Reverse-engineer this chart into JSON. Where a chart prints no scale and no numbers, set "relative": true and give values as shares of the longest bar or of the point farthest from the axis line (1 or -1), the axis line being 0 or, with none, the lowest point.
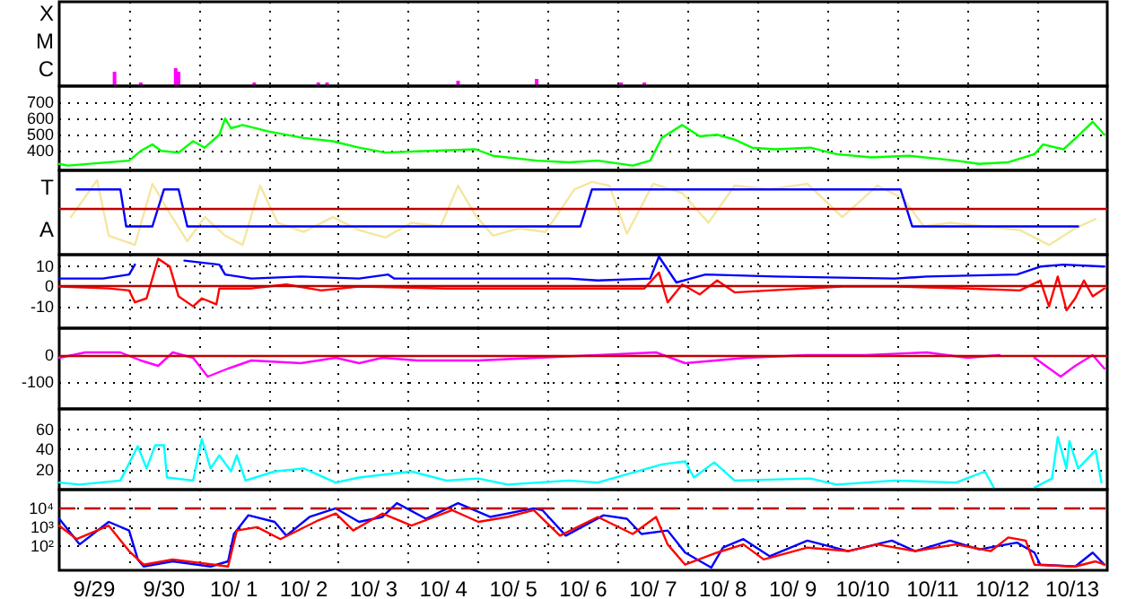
{
  "chart_data": [
    {
      "type": "bar",
      "relative": true,
      "grid": "x",
      "tick_labels": false,
      "xlim": [
        "--09-29",
        "--10-14"
      ],
      "xticks": [
        {
          "value": "--09-30",
          "label": null
        },
        {
          "value": "--10-01",
          "label": null
        },
        {
          "value": "--10-02",
          "label": null
        },
        {
          "value": "--10-03",
          "label": null
        },
        {
          "value": "--10-04",
          "label": null
        },
        {
          "value": "--10-05",
          "label": null
        },
        {
          "value": "--10-06",
          "label": null
        },
        {
          "value": "--10-07",
          "label": null
        },
        {
          "value": "--10-08",
          "label": null
        },
        {
          "value": "--10-09",
          "label": null
        },
        {
          "value": "--10-10",
          "label": null
        },
        {
          "value": "--10-11",
          "label": null
        },
        {
          "value": "--10-12",
          "label": null
        },
        {
          "value": "--10-13",
          "label": null
        }
      ],
      "annotations": [
        "X",
        "M",
        "C"
      ],
      "series": [
        {
          "color": "#ff00ff",
          "x": [
            "--09-29T19:00",
            "--09-30T04:00",
            "--09-30T16:00",
            "--09-30T17:00",
            "--10-01T19:00",
            "--10-02T17:00",
            "--10-02T20:00",
            "--10-04T17:00",
            "--10-05T20:00",
            "--10-07T01:00",
            "--10-07T09:00"
          ],
          "values": [
            0.8,
            0.2,
            1,
            0.8,
            0.2,
            0.2,
            0.2,
            0.3,
            0.4,
            0.2,
            0.2
          ]
        }
      ]
    },
    {
      "type": "line",
      "grid": true,
      "tick_labels": "y",
      "xlim": [
        "--09-29",
        "--10-14"
      ],
      "ylim": [
        280,
        800
      ],
      "xticks": [
        {
          "value": "--09-30",
          "label": null
        },
        {
          "value": "--10-01",
          "label": null
        },
        {
          "value": "--10-02",
          "label": null
        },
        {
          "value": "--10-03",
          "label": null
        },
        {
          "value": "--10-04",
          "label": null
        },
        {
          "value": "--10-05",
          "label": null
        },
        {
          "value": "--10-06",
          "label": null
        },
        {
          "value": "--10-07",
          "label": null
        },
        {
          "value": "--10-08",
          "label": null
        },
        {
          "value": "--10-09",
          "label": null
        },
        {
          "value": "--10-10",
          "label": null
        },
        {
          "value": "--10-11",
          "label": null
        },
        {
          "value": "--10-12",
          "label": null
        },
        {
          "value": "--10-13",
          "label": null
        }
      ],
      "yticks": [
        400,
        500,
        600,
        700
      ],
      "series": [
        {
          "color": "#00ff00",
          "x": [
            "--09-29T00:00",
            "--09-29T03:00",
            "--09-30T00:00",
            "--09-30T04:00",
            "--09-30T08:00",
            "--09-30T11:00",
            "--09-30T17:00",
            "--09-30T22:00",
            "--10-01T02:00",
            "--10-01T07:00",
            "--10-01T09:00",
            "--10-01T11:00",
            "--10-01T15:00",
            "--10-02T00:00",
            "--10-02T12:00",
            "--10-02T22:00",
            "--10-03T07:00",
            "--10-03T16:00",
            "--10-04T07:00",
            "--10-04T23:00",
            "--10-05T05:00",
            "--10-05T20:00",
            "--10-06T07:00",
            "--10-06T17:00",
            "--10-07T05:00",
            "--10-07T11:00",
            "--10-07T15:00",
            "--10-07T22:00",
            "--10-08T04:00",
            "--10-08T10:00",
            "--10-08T16:00",
            "--10-08T22:00",
            "--10-09T06:00",
            "--10-09T18:00",
            "--10-10T03:00",
            "--10-10T15:00",
            "--10-11T04:00",
            "--10-11T20:00",
            "--10-12T04:00",
            "--10-12T14:00",
            "--10-12T23:00",
            "--10-13T02:00",
            "--10-13T09:00",
            "--10-13T15:00",
            "--10-13T19:00",
            "--10-13T23:00"
          ],
          "values": [
            320,
            310,
            340,
            400,
            440,
            400,
            390,
            460,
            420,
            500,
            600,
            540,
            560,
            520,
            480,
            460,
            420,
            390,
            400,
            410,
            370,
            340,
            330,
            340,
            310,
            340,
            480,
            560,
            490,
            500,
            470,
            420,
            410,
            420,
            380,
            360,
            370,
            340,
            320,
            330,
            380,
            440,
            410,
            510,
            580,
            500
          ]
        }
      ]
    },
    {
      "type": "line",
      "relative": true,
      "grid": "x",
      "tick_labels": false,
      "xlim": [
        "--09-29",
        "--10-14"
      ],
      "xticks": [
        {
          "value": "--09-30",
          "label": null
        },
        {
          "value": "--10-01",
          "label": null
        },
        {
          "value": "--10-02",
          "label": null
        },
        {
          "value": "--10-03",
          "label": null
        },
        {
          "value": "--10-04",
          "label": null
        },
        {
          "value": "--10-05",
          "label": null
        },
        {
          "value": "--10-06",
          "label": null
        },
        {
          "value": "--10-07",
          "label": null
        },
        {
          "value": "--10-08",
          "label": null
        },
        {
          "value": "--10-09",
          "label": null
        },
        {
          "value": "--10-10",
          "label": null
        },
        {
          "value": "--10-11",
          "label": null
        },
        {
          "value": "--10-12",
          "label": null
        },
        {
          "value": "--10-13",
          "label": null
        }
      ],
      "annotations": [
        "T",
        "A"
      ],
      "ref_lines": [
        {
          "axis": "y",
          "value": 0,
          "color": "#c00000"
        }
      ],
      "series": [
        {
          "color": "#f5e6a0",
          "x": [
            "--09-29T04:00",
            "--09-29T13:00",
            "--09-29T17:00",
            "--09-30T02:00",
            "--09-30T08:00",
            "--09-30T14:00",
            "--09-30T20:00",
            "--10-01T02:00",
            "--10-01T09:00",
            "--10-01T15:00",
            "--10-01T21:00",
            "--10-02T03:00",
            "--10-02T12:00",
            "--10-02T22:00",
            "--10-03T07:00",
            "--10-03T16:00",
            "--10-04T01:00",
            "--10-04T11:00",
            "--10-04T17:00",
            "--10-04T23:00",
            "--10-05T05:00",
            "--10-05T14:00",
            "--10-05T23:00",
            "--10-06T09:00",
            "--10-06T15:00",
            "--10-06T21:00",
            "--10-07T03:00",
            "--10-07T12:00",
            "--10-07T22:00",
            "--10-08T07:00",
            "--10-08T16:00",
            "--10-09T04:00",
            "--10-09T17:00",
            "--10-10T05:00",
            "--10-10T17:00",
            "--10-11T02:00",
            "--10-11T09:00",
            "--10-11T18:00",
            "--10-12T06:00",
            "--10-12T18:00",
            "--10-13T04:00",
            "--10-13T13:00",
            "--10-13T20:00"
          ],
          "values": [
            -0.25,
            0.75,
            -0.75,
            -1,
            0.65,
            -0.15,
            -0.9,
            -0.25,
            -0.75,
            -1,
            0.6,
            -0.4,
            -0.65,
            -0.25,
            -0.6,
            -0.8,
            -0.4,
            -0.5,
            0.6,
            -0.2,
            -0.75,
            -0.55,
            -0.65,
            0.5,
            0.7,
            0.6,
            -0.7,
            0.65,
            0.4,
            -0.4,
            0.6,
            0.5,
            0.65,
            -0.25,
            0.6,
            0.25,
            -0.5,
            -0.4,
            -0.5,
            -0.6,
            -1,
            -0.55,
            -0.3
          ]
        },
        {
          "color": "#0000ff",
          "x": [
            "--09-29T06:00",
            "--09-29T21:00",
            "--09-29T23:00",
            "--09-30T08:00",
            "--09-30T12:00",
            "--09-30T17:00",
            "--09-30T20:00",
            "--10-06T11:00",
            "--10-06T15:00",
            "--10-11T01:00",
            "--10-11T05:00",
            "--10-13T14:00"
          ],
          "values": [
            0.5,
            0.5,
            -0.5,
            -0.5,
            0.5,
            0.5,
            -0.5,
            -0.5,
            0.5,
            0.5,
            -0.5,
            -0.5
          ]
        }
      ]
    },
    {
      "type": "line",
      "grid": true,
      "tick_labels": "y",
      "xlim": [
        "--09-29",
        "--10-14"
      ],
      "ylim": [
        -21,
        16
      ],
      "xticks": [
        {
          "value": "--09-30",
          "label": null
        },
        {
          "value": "--10-01",
          "label": null
        },
        {
          "value": "--10-02",
          "label": null
        },
        {
          "value": "--10-03",
          "label": null
        },
        {
          "value": "--10-04",
          "label": null
        },
        {
          "value": "--10-05",
          "label": null
        },
        {
          "value": "--10-06",
          "label": null
        },
        {
          "value": "--10-07",
          "label": null
        },
        {
          "value": "--10-08",
          "label": null
        },
        {
          "value": "--10-09",
          "label": null
        },
        {
          "value": "--10-10",
          "label": null
        },
        {
          "value": "--10-11",
          "label": null
        },
        {
          "value": "--10-12",
          "label": null
        },
        {
          "value": "--10-13",
          "label": null
        }
      ],
      "yticks": [
        -10,
        0,
        10
      ],
      "ref_lines": [
        {
          "axis": "y",
          "value": 0,
          "color": "#c00000"
        }
      ],
      "series": [
        {
          "color": "#0000ff",
          "x": [
            "--09-29T00:00",
            "--09-29T15:00",
            "--09-30T00:00",
            "--09-30T02:00",
            "--09-30T03:00",
            "--09-30T09:00",
            "--09-30T15:00",
            "--09-30T19:00",
            "--10-01T01:00",
            "--10-01T07:00",
            "--10-01T09:00",
            "--10-01T18:00",
            "--10-02T11:00",
            "--10-03T07:00",
            "--10-03T17:00",
            "--10-03T19:00",
            "--10-05T00:00",
            "--10-06T07:00",
            "--10-06T17:00",
            "--10-07T11:00",
            "--10-07T14:00",
            "--10-07T20:00",
            "--10-08T06:00",
            "--10-09T06:00",
            "--10-10T23:00",
            "--10-11T10:00",
            "--10-12T17:00",
            "--10-13T01:00",
            "--10-13T09:00",
            "--10-13T23:00"
          ],
          "values": [
            4,
            4,
            6,
            11,
            null,
            null,
            null,
            13,
            12,
            11,
            6,
            4,
            5,
            4,
            6,
            4,
            4,
            4,
            3,
            4,
            15,
            2,
            6,
            5,
            4,
            5,
            6,
            10,
            11,
            10
          ]
        },
        {
          "color": "#ff0000",
          "x": [
            "--09-29T00:00",
            "--09-29T17:00",
            "--09-30T00:00",
            "--09-30T02:00",
            "--09-30T06:00",
            "--09-30T10:00",
            "--09-30T14:00",
            "--09-30T17:00",
            "--09-30T22:00",
            "--10-01T01:00",
            "--10-01T06:00",
            "--10-01T07:00",
            "--10-01T18:00",
            "--10-02T06:00",
            "--10-02T18:00",
            "--10-03T07:00",
            "--10-04T13:00",
            "--10-05T20:00",
            "--10-06T07:00",
            "--10-07T09:00",
            "--10-07T14:00",
            "--10-07T17:00",
            "--10-07T22:00",
            "--10-08T04:00",
            "--10-08T10:00",
            "--10-08T16:00",
            "--10-09T04:00",
            "--10-10T05:00",
            "--10-10T23:00",
            "--10-12T00:00",
            "--10-12T18:00",
            "--10-13T01:00",
            "--10-13T04:00",
            "--10-13T07:00",
            "--10-13T10:00",
            "--10-13T13:00",
            "--10-13T16:00",
            "--10-13T19:00",
            "--10-13T23:00"
          ],
          "values": [
            0,
            -1,
            -2,
            -8,
            -6,
            14,
            10,
            -5,
            -10,
            -6,
            -9,
            -1,
            -1,
            1,
            -2,
            0,
            -1,
            -1,
            -1,
            -1,
            7,
            -8,
            1,
            -4,
            3,
            -3,
            -2,
            0,
            0,
            -1,
            -2,
            3,
            -10,
            5,
            -12,
            -6,
            3,
            -5,
            -1
          ]
        }
      ]
    },
    {
      "type": "line",
      "grid": true,
      "tick_labels": "y",
      "xlim": [
        "--09-29",
        "--10-14"
      ],
      "ylim": [
        -200,
        100
      ],
      "xticks": [
        {
          "value": "--09-30",
          "label": null
        },
        {
          "value": "--10-01",
          "label": null
        },
        {
          "value": "--10-02",
          "label": null
        },
        {
          "value": "--10-03",
          "label": null
        },
        {
          "value": "--10-04",
          "label": null
        },
        {
          "value": "--10-05",
          "label": null
        },
        {
          "value": "--10-06",
          "label": null
        },
        {
          "value": "--10-07",
          "label": null
        },
        {
          "value": "--10-08",
          "label": null
        },
        {
          "value": "--10-09",
          "label": null
        },
        {
          "value": "--10-10",
          "label": null
        },
        {
          "value": "--10-11",
          "label": null
        },
        {
          "value": "--10-12",
          "label": null
        },
        {
          "value": "--10-13",
          "label": null
        }
      ],
      "yticks": [
        -100,
        0
      ],
      "ref_lines": [
        {
          "axis": "y",
          "value": 0,
          "color": "#c00000"
        }
      ],
      "series": [
        {
          "color": "#ff00ff",
          "x": [
            "--09-29T00:00",
            "--09-29T09:00",
            "--09-29T21:00",
            "--09-30T04:00",
            "--09-30T10:00",
            "--09-30T15:00",
            "--09-30T22:00",
            "--10-01T03:00",
            "--10-01T10:00",
            "--10-01T18:00",
            "--10-02T11:00",
            "--10-02T23:00",
            "--10-03T07:00",
            "--10-03T15:00",
            "--10-04T03:00",
            "--10-05T00:00",
            "--10-05T20:00",
            "--10-06T17:00",
            "--10-07T13:00",
            "--10-07T23:00",
            "--10-08T20:00",
            "--10-09T17:00",
            "--10-10T13:00",
            "--10-11T10:00",
            "--10-12T00:00",
            "--10-12T11:00",
            "--10-12T17:00",
            "--10-12T23:00",
            "--10-13T08:00",
            "--10-13T13:00",
            "--10-13T19:00",
            "--10-13T23:00"
          ],
          "values": [
            -10,
            10,
            10,
            -20,
            -40,
            10,
            -10,
            -80,
            -50,
            -20,
            -30,
            -10,
            -30,
            -10,
            -20,
            -20,
            -10,
            0,
            10,
            -30,
            -10,
            0,
            0,
            10,
            -10,
            0,
            null,
            -10,
            -80,
            -40,
            0,
            -50
          ]
        }
      ]
    },
    {
      "type": "line",
      "grid": true,
      "tick_labels": "y",
      "xlim": [
        "--09-29",
        "--10-14"
      ],
      "ylim": [
        0,
        80
      ],
      "xticks": [
        {
          "value": "--09-30",
          "label": null
        },
        {
          "value": "--10-01",
          "label": null
        },
        {
          "value": "--10-02",
          "label": null
        },
        {
          "value": "--10-03",
          "label": null
        },
        {
          "value": "--10-04",
          "label": null
        },
        {
          "value": "--10-05",
          "label": null
        },
        {
          "value": "--10-06",
          "label": null
        },
        {
          "value": "--10-07",
          "label": null
        },
        {
          "value": "--10-08",
          "label": null
        },
        {
          "value": "--10-09",
          "label": null
        },
        {
          "value": "--10-10",
          "label": null
        },
        {
          "value": "--10-11",
          "label": null
        },
        {
          "value": "--10-12",
          "label": null
        },
        {
          "value": "--10-13",
          "label": null
        }
      ],
      "yticks": [
        20,
        40,
        60
      ],
      "series": [
        {
          "color": "#00ffff",
          "x": [
            "--09-29T00:00",
            "--09-29T07:00",
            "--09-29T21:00",
            "--09-30T03:00",
            "--09-30T06:00",
            "--09-30T09:00",
            "--09-30T12:00",
            "--09-30T13:00",
            "--09-30T22:00",
            "--10-01T01:00",
            "--10-01T04:00",
            "--10-01T07:00",
            "--10-01T11:00",
            "--10-01T13:00",
            "--10-01T16:00",
            "--10-02T02:00",
            "--10-02T12:00",
            "--10-02T23:00",
            "--10-03T07:00",
            "--10-04T01:00",
            "--10-04T13:00",
            "--10-05T00:00",
            "--10-05T10:00",
            "--10-06T07:00",
            "--10-06T17:00",
            "--10-07T15:00",
            "--10-07T23:00",
            "--10-08T02:00",
            "--10-08T09:00",
            "--10-08T16:00",
            "--10-09T18:00",
            "--10-10T03:00",
            "--10-10T23:00",
            "--10-11T20:00",
            "--10-12T06:00",
            "--10-12T09:00",
            "--10-12T17:00",
            "--10-12T23:00",
            "--10-13T05:00",
            "--10-13T07:00",
            "--10-13T10:00",
            "--10-13T11:00",
            "--10-13T14:00",
            "--10-13T20:00",
            "--10-13T22:00"
          ],
          "values": [
            7,
            5,
            9,
            43,
            21,
            44,
            44,
            12,
            9,
            50,
            21,
            34,
            18,
            34,
            9,
            18,
            21,
            7,
            12,
            18,
            9,
            11,
            5,
            9,
            7,
            25,
            28,
            12,
            27,
            9,
            11,
            5,
            9,
            7,
            18,
            2,
            null,
            2,
            11,
            52,
            21,
            48,
            21,
            39,
            7
          ]
        }
      ]
    },
    {
      "type": "line",
      "log": "y",
      "grid": true,
      "xlim": [
        "--09-29",
        "--10-14"
      ],
      "ylim": [
        5,
        100000
      ],
      "xticks": [
        {
          "value": "--09-29T12:00",
          "label": "9/29"
        },
        {
          "value": "--09-30",
          "label": null
        },
        {
          "value": "--09-30T12:00",
          "label": "9/30"
        },
        {
          "value": "--10-01",
          "label": null
        },
        {
          "value": "--10-01T12:00",
          "label": "10/ 1"
        },
        {
          "value": "--10-02",
          "label": null
        },
        {
          "value": "--10-02T12:00",
          "label": "10/ 2"
        },
        {
          "value": "--10-03",
          "label": null
        },
        {
          "value": "--10-03T12:00",
          "label": "10/ 3"
        },
        {
          "value": "--10-04",
          "label": null
        },
        {
          "value": "--10-04T12:00",
          "label": "10/ 4"
        },
        {
          "value": "--10-05",
          "label": null
        },
        {
          "value": "--10-05T12:00",
          "label": "10/ 5"
        },
        {
          "value": "--10-06",
          "label": null
        },
        {
          "value": "--10-06T12:00",
          "label": "10/ 6"
        },
        {
          "value": "--10-07",
          "label": null
        },
        {
          "value": "--10-07T12:00",
          "label": "10/ 7"
        },
        {
          "value": "--10-08",
          "label": null
        },
        {
          "value": "--10-08T12:00",
          "label": "10/ 8"
        },
        {
          "value": "--10-09",
          "label": null
        },
        {
          "value": "--10-09T12:00",
          "label": "10/ 9"
        },
        {
          "value": "--10-10",
          "label": null
        },
        {
          "value": "--10-10T12:00",
          "label": "10/10"
        },
        {
          "value": "--10-11",
          "label": null
        },
        {
          "value": "--10-11T12:00",
          "label": "10/11"
        },
        {
          "value": "--10-12",
          "label": null
        },
        {
          "value": "--10-12T12:00",
          "label": "10/12"
        },
        {
          "value": "--10-13",
          "label": null
        },
        {
          "value": "--10-13T12:00",
          "label": "10/13"
        }
      ],
      "yticks": [
        {
          "value": 100,
          "label": "10²"
        },
        {
          "value": 1000,
          "label": "10³"
        },
        {
          "value": 10000,
          "label": "10⁴"
        }
      ],
      "ref_lines": [
        {
          "axis": "y",
          "value": 10000,
          "color": "#c00000",
          "line_style": "dashed"
        }
      ],
      "series": [
        {
          "color": "#0000ff",
          "x": [
            "--09-29T00:00",
            "--09-29T07:00",
            "--09-29T17:00",
            "--09-30T00:00",
            "--09-30T03:00",
            "--09-30T05:00",
            "--09-30T15:00",
            "--10-01T04:00",
            "--10-01T10:00",
            "--10-01T12:00",
            "--10-01T17:00",
            "--10-02T02:00",
            "--10-02T06:00",
            "--10-02T14:00",
            "--10-02T23:00",
            "--10-03T07:00",
            "--10-03T15:00",
            "--10-03T20:00",
            "--10-04T06:00",
            "--10-04T17:00",
            "--10-05T04:00",
            "--10-05T19:00",
            "--10-05T22:00",
            "--10-06T06:00",
            "--10-06T19:00",
            "--10-07T03:00",
            "--10-07T08:00",
            "--10-07T17:00",
            "--10-07T23:00",
            "--10-08T08:00",
            "--10-08T12:00",
            "--10-08T19:00",
            "--10-09T04:00",
            "--10-09T17:00",
            "--10-10T07:00",
            "--10-10T22:00",
            "--10-11T06:00",
            "--10-11T18:00",
            "--10-12T04:00",
            "--10-12T17:00",
            "--10-12T23:00",
            "--10-13T01:00",
            "--10-13T13:00",
            "--10-13T19:00",
            "--10-13T23:00"
          ],
          "values": [
            2800,
            120,
            1900,
            660,
            19,
            8,
            15,
            8,
            15,
            430,
            4300,
            1900,
            350,
            3500,
            10000,
            1900,
            3500,
            19000,
            2800,
            19000,
            3500,
            10000,
            8000,
            350,
            4300,
            2800,
            430,
            660,
            44,
            7,
            81,
            230,
            28,
            190,
            53,
            190,
            53,
            190,
            65,
            150,
            44,
            10,
            8,
            44,
            10
          ]
        },
        {
          "color": "#ff0000",
          "x": [
            "--09-29T00:00",
            "--09-29T06:00",
            "--09-29T17:00",
            "--09-30T00:00",
            "--09-30T05:00",
            "--09-30T15:00",
            "--10-01T10:00",
            "--10-01T13:00",
            "--10-01T20:00",
            "--10-02T04:00",
            "--10-02T17:00",
            "--10-02T23:00",
            "--10-03T05:00",
            "--10-03T15:00",
            "--10-04T01:00",
            "--10-04T15:00",
            "--10-05T00:00",
            "--10-05T10:00",
            "--10-05T19:00",
            "--10-06T04:00",
            "--10-06T17:00",
            "--10-07T05:00",
            "--10-07T13:00",
            "--10-07T17:00",
            "--10-07T23:00",
            "--10-08T10:00",
            "--10-08T19:00",
            "--10-09T02:00",
            "--10-09T17:00",
            "--10-10T07:00",
            "--10-10T17:00",
            "--10-11T06:00",
            "--10-11T20:00",
            "--10-12T08:00",
            "--10-12T14:00",
            "--10-12T20:00",
            "--10-12T23:00",
            "--10-13T13:00",
            "--10-13T20:00",
            "--10-13T23:00"
          ],
          "values": [
            1200,
            230,
            1200,
            53,
            10,
            19,
            8,
            660,
            1000,
            230,
            2300,
            5300,
            660,
            5300,
            1200,
            8000,
            1900,
            3500,
            8000,
            350,
            3500,
            430,
            3500,
            120,
            10,
            44,
            120,
            19,
            81,
            53,
            120,
            53,
            120,
            53,
            280,
            190,
            10,
            8,
            15,
            10
          ]
        }
      ]
    }
  ]
}
